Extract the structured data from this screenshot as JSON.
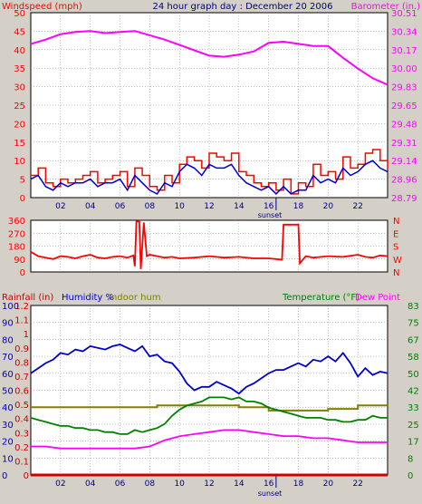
{
  "header": {
    "left_title": "Windspeed (mph)",
    "center_title": "24 hour graph day : December 20 2006",
    "right_title": "Barometer (in.)"
  },
  "colors": {
    "wind": "#ff0000",
    "wind_avg": "#0000cc",
    "barometer": "#ff00ff",
    "direction": "#ff0000",
    "humidity": "#0000cc",
    "indoor_hum": "#808000",
    "temperature": "#008000",
    "dew_point": "#ff00ff",
    "rainfall": "#cc0000",
    "plot_bg": "#ffffff",
    "grid": "#808080",
    "sunset_marker": "#000080",
    "page_bg": "#d4d0c8"
  },
  "footer": {
    "sunset_label_top": "sunset",
    "sunset_label_bottom": "sunset"
  },
  "chart_data": [
    {
      "type": "line",
      "name": "wind-barometer",
      "x_ticks": [
        "02",
        "04",
        "06",
        "08",
        "10",
        "12",
        "14",
        "16",
        "18",
        "20",
        "22"
      ],
      "x_range": [
        0,
        24
      ],
      "sunset_hour": 16.5,
      "ylabel_left": "Windspeed (mph)",
      "ylim_left": [
        0,
        50
      ],
      "yticks_left": [
        "0",
        "5",
        "10",
        "15",
        "20",
        "25",
        "30",
        "35",
        "40",
        "45",
        "50"
      ],
      "ylabel_right": "Barometer (in.)",
      "ylim_right": [
        28.79,
        30.51
      ],
      "yticks_right": [
        "28.79",
        "28.96",
        "29.14",
        "29.31",
        "29.48",
        "29.65",
        "29.83",
        "30.00",
        "30.17",
        "30.34",
        "30.51"
      ],
      "series": [
        {
          "key": "wind_gust",
          "axis": "left",
          "x": [
            0,
            0.5,
            1,
            1.5,
            2,
            2.5,
            3,
            3.5,
            4,
            4.5,
            5,
            5.5,
            6,
            6.5,
            7,
            7.5,
            8,
            8.5,
            9,
            9.5,
            10,
            10.5,
            11,
            11.5,
            12,
            12.5,
            13,
            13.5,
            14,
            14.5,
            15,
            15.5,
            16,
            16.5,
            17,
            17.5,
            18,
            18.5,
            19,
            19.5,
            20,
            20.5,
            21,
            21.5,
            22,
            22.5,
            23,
            23.5,
            24
          ],
          "y": [
            6,
            8,
            4,
            3,
            5,
            4,
            5,
            6,
            7,
            4,
            5,
            6,
            7,
            3,
            8,
            6,
            3,
            2,
            6,
            4,
            9,
            11,
            10,
            8,
            12,
            11,
            10,
            12,
            7,
            6,
            4,
            3,
            4,
            2,
            5,
            1,
            4,
            3,
            9,
            6,
            7,
            5,
            11,
            8,
            9,
            12,
            13,
            10,
            8
          ]
        },
        {
          "key": "wind_avg",
          "axis": "left",
          "x": [
            0,
            0.5,
            1,
            1.5,
            2,
            2.5,
            3,
            3.5,
            4,
            4.5,
            5,
            5.5,
            6,
            6.5,
            7,
            7.5,
            8,
            8.5,
            9,
            9.5,
            10,
            10.5,
            11,
            11.5,
            12,
            12.5,
            13,
            13.5,
            14,
            14.5,
            15,
            15.5,
            16,
            16.5,
            17,
            17.5,
            18,
            18.5,
            19,
            19.5,
            20,
            20.5,
            21,
            21.5,
            22,
            22.5,
            23,
            23.5,
            24
          ],
          "y": [
            5,
            6,
            3,
            2,
            4,
            3,
            4,
            4,
            5,
            3,
            4,
            4,
            5,
            2,
            6,
            4,
            2,
            1,
            4,
            3,
            7,
            9,
            8,
            6,
            9,
            8,
            8,
            9,
            6,
            4,
            3,
            2,
            3,
            1,
            3,
            1,
            2,
            2,
            6,
            4,
            5,
            4,
            8,
            6,
            7,
            9,
            10,
            8,
            7
          ]
        },
        {
          "key": "barometer",
          "axis": "right",
          "x": [
            0,
            1,
            2,
            3,
            4,
            5,
            6,
            7,
            8,
            9,
            10,
            11,
            12,
            13,
            14,
            15,
            16,
            17,
            18,
            19,
            20,
            21,
            22,
            23,
            24
          ],
          "y": [
            30.22,
            30.26,
            30.31,
            30.33,
            30.34,
            30.32,
            30.33,
            30.34,
            30.3,
            30.26,
            30.21,
            30.16,
            30.11,
            30.1,
            30.12,
            30.15,
            30.23,
            30.24,
            30.22,
            30.2,
            30.2,
            30.09,
            29.99,
            29.9,
            29.84
          ]
        }
      ]
    },
    {
      "type": "line",
      "name": "wind-direction",
      "x_range": [
        0,
        24
      ],
      "ylim": [
        0,
        360
      ],
      "yticks_left": [
        "0",
        "90",
        "180",
        "270",
        "360"
      ],
      "yticks_right": [
        "N",
        "W",
        "S",
        "E",
        "N"
      ],
      "series": [
        {
          "key": "direction",
          "x": [
            0,
            0.5,
            1,
            1.5,
            2,
            2.5,
            3,
            3.5,
            4,
            4.5,
            5,
            5.5,
            6,
            6.5,
            6.9,
            7,
            7.1,
            7.3,
            7.4,
            7.6,
            7.8,
            8,
            8.5,
            9,
            9.5,
            10,
            11,
            12,
            13,
            14,
            15,
            16,
            16.5,
            16.9,
            17,
            17.1,
            18,
            18.1,
            18.5,
            19,
            20,
            21,
            22,
            22.5,
            23,
            23.5,
            24
          ],
          "y": [
            140,
            110,
            100,
            90,
            110,
            105,
            95,
            110,
            120,
            100,
            95,
            105,
            110,
            100,
            115,
            40,
            350,
            355,
            20,
            345,
            110,
            120,
            110,
            100,
            105,
            95,
            100,
            110,
            100,
            105,
            95,
            95,
            90,
            85,
            330,
            330,
            330,
            60,
            110,
            100,
            110,
            105,
            120,
            105,
            100,
            115,
            110
          ]
        }
      ]
    },
    {
      "type": "line",
      "name": "humidity-temperature",
      "x_ticks": [
        "02",
        "04",
        "06",
        "08",
        "10",
        "12",
        "14",
        "16",
        "18",
        "20",
        "22"
      ],
      "x_range": [
        0,
        24
      ],
      "sunset_hour": 16.5,
      "labels": {
        "rainfall": "Rainfall (in)",
        "humidity": "Humidity %",
        "indoor_hum": "Indoor hum",
        "temperature": "Temperature (°F)",
        "dew_point": "Dew Point"
      },
      "ylim_humidity": [
        0,
        100
      ],
      "yticks_humidity": [
        "0",
        "10",
        "20",
        "30",
        "40",
        "50",
        "60",
        "70",
        "80",
        "90",
        "100"
      ],
      "ylim_rain": [
        0,
        1.2
      ],
      "yticks_rain": [
        "0",
        "0.1",
        "0.2",
        "0.3",
        "0.4",
        "0.5",
        "0.6",
        "0.7",
        "0.8",
        "0.9",
        "1",
        "1.1",
        "1.2"
      ],
      "ylim_temp": [
        0,
        83
      ],
      "yticks_temp": [
        "0",
        "8",
        "17",
        "25",
        "33",
        "42",
        "50",
        "58",
        "67",
        "75",
        "83"
      ],
      "series": [
        {
          "key": "humidity",
          "axis": "humidity",
          "x": [
            0,
            0.5,
            1,
            1.5,
            2,
            2.5,
            3,
            3.5,
            4,
            4.5,
            5,
            5.5,
            6,
            6.5,
            7,
            7.5,
            8,
            8.5,
            9,
            9.5,
            10,
            10.5,
            11,
            11.5,
            12,
            12.5,
            13,
            13.5,
            14,
            14.5,
            15,
            15.5,
            16,
            16.5,
            17,
            17.5,
            18,
            18.5,
            19,
            19.5,
            20,
            20.5,
            21,
            21.5,
            22,
            22.5,
            23,
            23.5,
            24
          ],
          "y": [
            60,
            63,
            66,
            68,
            72,
            71,
            74,
            73,
            76,
            75,
            74,
            76,
            77,
            75,
            73,
            76,
            70,
            71,
            67,
            66,
            61,
            54,
            50,
            52,
            52,
            55,
            53,
            51,
            48,
            52,
            54,
            57,
            60,
            62,
            62,
            64,
            66,
            64,
            68,
            67,
            70,
            67,
            72,
            66,
            58,
            63,
            59,
            61,
            60
          ]
        },
        {
          "key": "indoor_hum",
          "axis": "humidity",
          "x": [
            0,
            2,
            4,
            6,
            8,
            8.5,
            10,
            12,
            14,
            16,
            18,
            20,
            22,
            24
          ],
          "y": [
            40,
            40,
            40,
            40,
            40,
            41,
            41,
            41,
            40,
            38,
            38,
            39,
            41,
            42
          ]
        },
        {
          "key": "temperature",
          "axis": "temp",
          "x": [
            0,
            0.5,
            1,
            1.5,
            2,
            2.5,
            3,
            3.5,
            4,
            4.5,
            5,
            5.5,
            6,
            6.5,
            7,
            7.5,
            8,
            8.5,
            9,
            9.5,
            10,
            10.5,
            11,
            11.5,
            12,
            12.5,
            13,
            13.5,
            14,
            14.5,
            15,
            15.5,
            16,
            16.5,
            17,
            17.5,
            18,
            18.5,
            19,
            19.5,
            20,
            20.5,
            21,
            21.5,
            22,
            22.5,
            23,
            23.5,
            24
          ],
          "y": [
            28,
            27,
            26,
            25,
            24,
            24,
            23,
            23,
            22,
            22,
            21,
            21,
            20,
            20,
            22,
            21,
            22,
            23,
            25,
            29,
            32,
            34,
            35,
            36,
            38,
            38,
            38,
            37,
            38,
            36,
            36,
            35,
            33,
            32,
            31,
            30,
            29,
            28,
            28,
            28,
            27,
            27,
            26,
            26,
            27,
            27,
            29,
            28,
            28
          ]
        },
        {
          "key": "dew_point",
          "axis": "temp",
          "x": [
            0,
            1,
            2,
            3,
            4,
            5,
            6,
            7,
            8,
            9,
            10,
            11,
            12,
            13,
            14,
            15,
            16,
            17,
            18,
            19,
            20,
            21,
            22,
            23,
            24
          ],
          "y": [
            14,
            14,
            13,
            13,
            13,
            13,
            13,
            13,
            14,
            17,
            19,
            20,
            21,
            22,
            22,
            21,
            20,
            19,
            19,
            18,
            18,
            17,
            16,
            16,
            16
          ]
        },
        {
          "key": "rainfall",
          "axis": "rain",
          "x": [
            0,
            24
          ],
          "y": [
            0,
            0
          ]
        }
      ]
    }
  ]
}
